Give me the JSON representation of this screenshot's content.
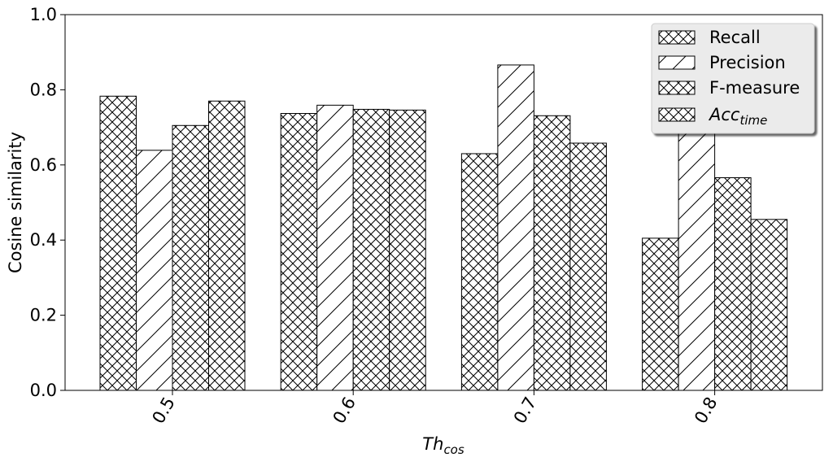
{
  "chart_data": {
    "type": "bar",
    "xlabel": "Th",
    "xlabel_sub": "cos",
    "ylabel": "Cosine similarity",
    "ylim": [
      0,
      1.0
    ],
    "yticks": [
      "0.0",
      "0.2",
      "0.4",
      "0.6",
      "0.8",
      "1.0"
    ],
    "categories": [
      "0.5",
      "0.6",
      "0.7",
      "0.8"
    ],
    "series": [
      {
        "name": "Recall",
        "hatch": "crosshatch",
        "values": [
          0.783,
          0.737,
          0.63,
          0.405
        ]
      },
      {
        "name": "Precision",
        "hatch": "diagonal",
        "values": [
          0.639,
          0.759,
          0.866,
          0.928
        ]
      },
      {
        "name": "F-measure",
        "hatch": "crosshatch",
        "values": [
          0.705,
          0.748,
          0.731,
          0.566
        ]
      },
      {
        "name": "Acc",
        "name_sub": "time",
        "hatch": "crosshatch",
        "values": [
          0.77,
          0.746,
          0.658,
          0.455
        ]
      }
    ],
    "legend_position": "top-right",
    "grid": false,
    "colors": {
      "bar_fill": "#ffffff",
      "bar_edge": "#000000",
      "legend_bg": "#ebebeb"
    }
  }
}
